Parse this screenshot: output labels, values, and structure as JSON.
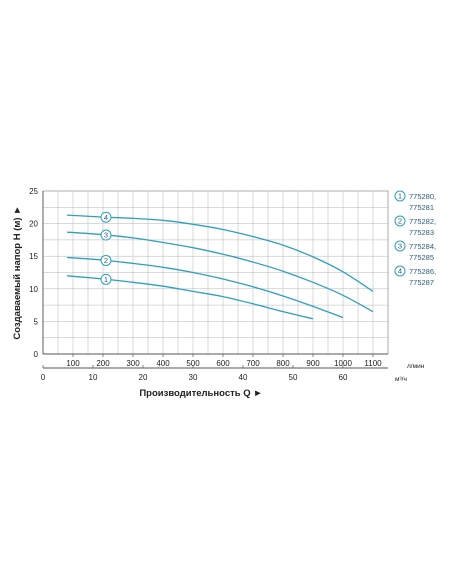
{
  "chart_data": {
    "type": "line",
    "y_axis": {
      "label": "Создаваемый напор H (м) ►",
      "ticks": [
        "0",
        "5",
        "10",
        "15",
        "20",
        "25"
      ],
      "ylim": [
        0,
        25
      ]
    },
    "x_axis_flow_lpm": {
      "ticks": [
        "100",
        "200",
        "300",
        "400",
        "500",
        "600",
        "700",
        "800",
        "900",
        "1000",
        "1100"
      ],
      "unit": "л/мин",
      "xlim": [
        0,
        1150
      ]
    },
    "x_axis_flow_m3h": {
      "ticks": [
        "0",
        "10",
        "20",
        "30",
        "40",
        "50",
        "60"
      ],
      "unit": "м³/ч",
      "label": "Производительность Q ►"
    },
    "grid": true,
    "line_color": "#2f9fbf",
    "series": [
      {
        "marker": "1",
        "name": "775280,\n775281",
        "x": [
          80,
          200,
          300,
          400,
          500,
          600,
          700,
          800,
          900
        ],
        "y": [
          12.0,
          11.5,
          11.0,
          10.4,
          9.6,
          8.8,
          7.7,
          6.5,
          5.4
        ]
      },
      {
        "marker": "2",
        "name": "775282,\n775283",
        "x": [
          80,
          200,
          300,
          400,
          500,
          600,
          700,
          800,
          900,
          1000
        ],
        "y": [
          14.8,
          14.4,
          13.9,
          13.3,
          12.5,
          11.5,
          10.3,
          8.9,
          7.3,
          5.6
        ]
      },
      {
        "marker": "3",
        "name": "775284,\n775285",
        "x": [
          80,
          200,
          300,
          400,
          500,
          600,
          700,
          800,
          900,
          1000,
          1100
        ],
        "y": [
          18.7,
          18.3,
          17.8,
          17.1,
          16.3,
          15.3,
          14.1,
          12.7,
          11.0,
          9.0,
          6.5
        ]
      },
      {
        "marker": "4",
        "name": "775286,\n775287",
        "x": [
          80,
          200,
          300,
          400,
          500,
          600,
          700,
          800,
          900,
          1000,
          1100
        ],
        "y": [
          21.3,
          21.0,
          20.8,
          20.5,
          19.9,
          19.1,
          18.0,
          16.7,
          14.9,
          12.6,
          9.6
        ]
      }
    ]
  }
}
